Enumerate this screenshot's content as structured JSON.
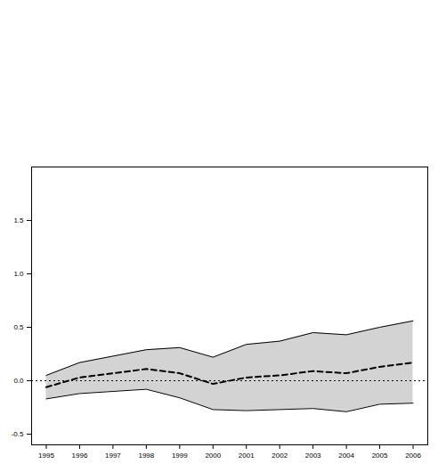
{
  "chart_data": {
    "type": "line",
    "x": [
      1995,
      1996,
      1997,
      1998,
      1999,
      2000,
      2001,
      2002,
      2003,
      2004,
      2005,
      2006
    ],
    "series": [
      {
        "type": "area",
        "color": "#d3d3d3",
        "line_style": "solid",
        "lower": [
          -0.17,
          -0.12,
          -0.1,
          -0.08,
          -0.16,
          -0.27,
          -0.28,
          -0.27,
          -0.26,
          -0.29,
          -0.22,
          -0.21
        ],
        "upper": [
          0.05,
          0.17,
          0.23,
          0.29,
          0.31,
          0.22,
          0.34,
          0.37,
          0.45,
          0.43,
          0.5,
          0.56
        ]
      },
      {
        "type": "line",
        "color": "#000000",
        "line_style": "dashed",
        "values": [
          -0.06,
          0.03,
          0.07,
          0.11,
          0.07,
          -0.03,
          0.03,
          0.05,
          0.09,
          0.07,
          0.13,
          0.17
        ]
      }
    ],
    "reference_lines": [
      {
        "y": 0,
        "line_style": "dotted",
        "color": "#000000"
      }
    ],
    "xlim": [
      1994.56,
      2006.44
    ],
    "xticks": [
      1995,
      1996,
      1997,
      1998,
      1999,
      2000,
      2001,
      2002,
      2003,
      2004,
      2005,
      2006
    ],
    "ylim": [
      -0.6,
      2.0
    ],
    "yticks": [
      -0.5,
      {
        "value": 0,
        "label": "0.0"
      },
      0.5,
      {
        "value": 1,
        "label": "1.0"
      },
      1.5
    ]
  }
}
